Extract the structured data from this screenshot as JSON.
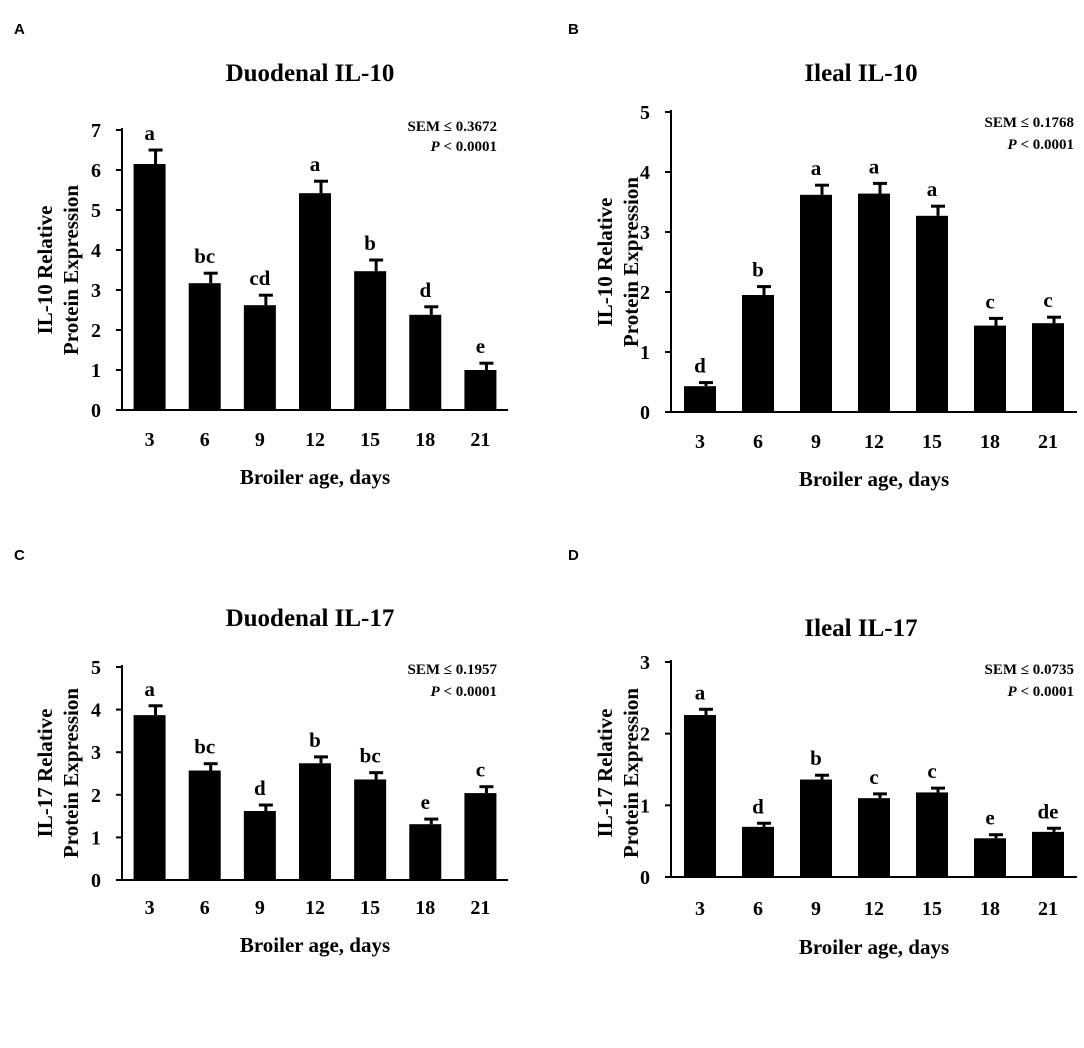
{
  "chart_data": [
    {
      "panel": "A",
      "type": "bar",
      "title": "Duodenal IL-10",
      "xlabel": "Broiler age, days",
      "ylabel": [
        "IL-10 Relative",
        "Protein Expression"
      ],
      "ylim": [
        0,
        7
      ],
      "yticks": [
        0,
        1,
        2,
        3,
        4,
        5,
        6,
        7
      ],
      "categories": [
        "3",
        "6",
        "9",
        "12",
        "15",
        "18",
        "21"
      ],
      "values": [
        6.15,
        3.17,
        2.62,
        5.42,
        3.47,
        2.38,
        1.0
      ],
      "errors": [
        0.35,
        0.25,
        0.25,
        0.3,
        0.28,
        0.2,
        0.17
      ],
      "letters": [
        "a",
        "bc",
        "cd",
        "a",
        "b",
        "d",
        "e"
      ],
      "sem": "SEM ≤ 0.3672",
      "p_prefix": "P",
      "p_value": " < 0.0001"
    },
    {
      "panel": "B",
      "type": "bar",
      "title": "Ileal IL-10",
      "xlabel": "Broiler age, days",
      "ylabel": [
        "IL-10 Relative",
        "Protein Expression"
      ],
      "ylim": [
        0,
        5
      ],
      "yticks": [
        0,
        1,
        2,
        3,
        4,
        5
      ],
      "categories": [
        "3",
        "6",
        "9",
        "12",
        "15",
        "18",
        "21"
      ],
      "values": [
        0.43,
        1.95,
        3.62,
        3.64,
        3.27,
        1.44,
        1.48
      ],
      "errors": [
        0.06,
        0.14,
        0.16,
        0.17,
        0.16,
        0.12,
        0.1
      ],
      "letters": [
        "d",
        "b",
        "a",
        "a",
        "a",
        "c",
        "c"
      ],
      "sem": "SEM ≤ 0.1768",
      "p_prefix": "P",
      "p_value": " < 0.0001"
    },
    {
      "panel": "C",
      "type": "bar",
      "title": "Duodenal IL-17",
      "xlabel": "Broiler age, days",
      "ylabel": [
        "IL-17 Relative",
        "Protein Expression"
      ],
      "ylim": [
        0,
        5
      ],
      "yticks": [
        0,
        1,
        2,
        3,
        4,
        5
      ],
      "categories": [
        "3",
        "6",
        "9",
        "12",
        "15",
        "18",
        "21"
      ],
      "values": [
        3.87,
        2.57,
        1.62,
        2.74,
        2.36,
        1.31,
        2.04
      ],
      "errors": [
        0.22,
        0.16,
        0.14,
        0.15,
        0.16,
        0.12,
        0.15
      ],
      "letters": [
        "a",
        "bc",
        "d",
        "b",
        "bc",
        "e",
        "c"
      ],
      "sem": "SEM ≤ 0.1957",
      "p_prefix": "P",
      "p_value": " < 0.0001"
    },
    {
      "panel": "D",
      "type": "bar",
      "title": "Ileal IL-17",
      "xlabel": "Broiler age, days",
      "ylabel": [
        "IL-17 Relative",
        "Protein Expression"
      ],
      "ylim": [
        0,
        3
      ],
      "yticks": [
        0,
        1,
        2,
        3
      ],
      "categories": [
        "3",
        "6",
        "9",
        "12",
        "15",
        "18",
        "21"
      ],
      "values": [
        2.26,
        0.7,
        1.36,
        1.1,
        1.18,
        0.54,
        0.63
      ],
      "errors": [
        0.08,
        0.05,
        0.06,
        0.06,
        0.06,
        0.05,
        0.05
      ],
      "letters": [
        "a",
        "d",
        "b",
        "c",
        "c",
        "e",
        "de"
      ],
      "sem": "SEM ≤ 0.0735",
      "p_prefix": "P",
      "p_value": " < 0.0001"
    }
  ]
}
